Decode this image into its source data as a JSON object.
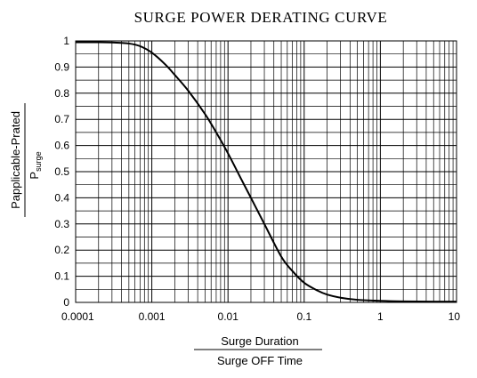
{
  "chart_data": {
    "type": "line",
    "title": "SURGE POWER DERATING CURVE",
    "xscale": "log",
    "xlim": [
      0.0001,
      10
    ],
    "ylim": [
      0,
      1
    ],
    "x_ticks": [
      "0.0001",
      "0.001",
      "0.01",
      "0.1",
      "1",
      "10"
    ],
    "y_ticks": [
      "0",
      "0.1",
      "0.2",
      "0.3",
      "0.4",
      "0.5",
      "0.6",
      "0.7",
      "0.8",
      "0.9",
      "1"
    ],
    "ylabel": {
      "numerator": "Papplicable-Prated",
      "denominator_main": "P",
      "denominator_sub": "surge"
    },
    "xlabel": {
      "numerator": "Surge Duration",
      "denominator": "Surge OFF Time"
    },
    "grid": true,
    "series": [
      {
        "x": [
          0.0001,
          0.0002,
          0.0003,
          0.0005,
          0.0007,
          0.001,
          0.0015,
          0.002,
          0.003,
          0.005,
          0.007,
          0.01,
          0.015,
          0.02,
          0.03,
          0.05,
          0.07,
          0.1,
          0.15,
          0.2,
          0.3,
          0.5,
          1,
          2,
          5,
          10
        ],
        "y": [
          0.995,
          0.995,
          0.994,
          0.99,
          0.98,
          0.955,
          0.91,
          0.87,
          0.81,
          0.72,
          0.65,
          0.57,
          0.47,
          0.4,
          0.3,
          0.175,
          0.12,
          0.075,
          0.045,
          0.03,
          0.018,
          0.01,
          0.006,
          0.004,
          0.003,
          0.003
        ],
        "color": "#000000"
      }
    ]
  }
}
